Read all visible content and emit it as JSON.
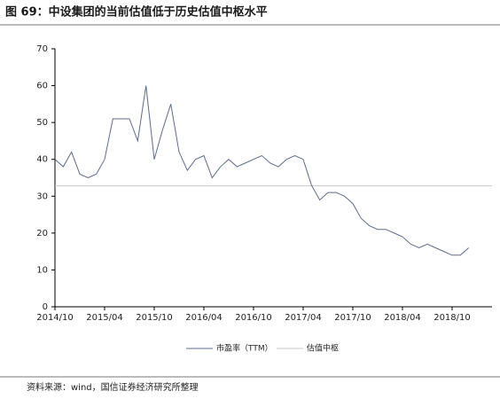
{
  "chart_data": {
    "type": "line",
    "title": "图 69：中设集团的当前估值低于历史估值中枢水平",
    "source": "资料来源：wind，国信证券经济研究所整理",
    "x": [
      "2014/10",
      "2014/11",
      "2014/12",
      "2015/01",
      "2015/02",
      "2015/03",
      "2015/04",
      "2015/05",
      "2015/06",
      "2015/07",
      "2015/08",
      "2015/09",
      "2015/10",
      "2015/11",
      "2015/12",
      "2016/01",
      "2016/02",
      "2016/03",
      "2016/04",
      "2016/05",
      "2016/06",
      "2016/07",
      "2016/08",
      "2016/09",
      "2016/10",
      "2016/11",
      "2016/12",
      "2017/01",
      "2017/02",
      "2017/03",
      "2017/04",
      "2017/05",
      "2017/06",
      "2017/07",
      "2017/08",
      "2017/09",
      "2017/10",
      "2017/11",
      "2017/12",
      "2018/01",
      "2018/02",
      "2018/03",
      "2018/04",
      "2018/05",
      "2018/06",
      "2018/07",
      "2018/08",
      "2018/09",
      "2018/10",
      "2018/11",
      "2018/12"
    ],
    "series": [
      {
        "name": "市盈率（TTM）",
        "color": "#5b6b8c",
        "values": [
          40,
          38,
          42,
          36,
          35,
          36,
          40,
          51,
          51,
          51,
          45,
          60,
          40,
          48,
          55,
          42,
          37,
          40,
          41,
          35,
          38,
          40,
          38,
          39,
          40,
          41,
          39,
          38,
          40,
          41,
          40,
          33,
          29,
          31,
          31,
          30,
          28,
          24,
          22,
          21,
          21,
          20,
          19,
          17,
          16,
          17,
          16,
          15,
          14,
          14,
          16
        ]
      },
      {
        "name": "估值中枢",
        "color": "#c8c8c8",
        "value": 32.8
      }
    ],
    "xticks": [
      "2014/10",
      "2015/04",
      "2015/10",
      "2016/04",
      "2016/10",
      "2017/04",
      "2017/10",
      "2018/04",
      "2018/10"
    ],
    "ylim": [
      0,
      70
    ],
    "yticks": [
      0,
      10,
      20,
      30,
      40,
      50,
      60,
      70
    ]
  }
}
